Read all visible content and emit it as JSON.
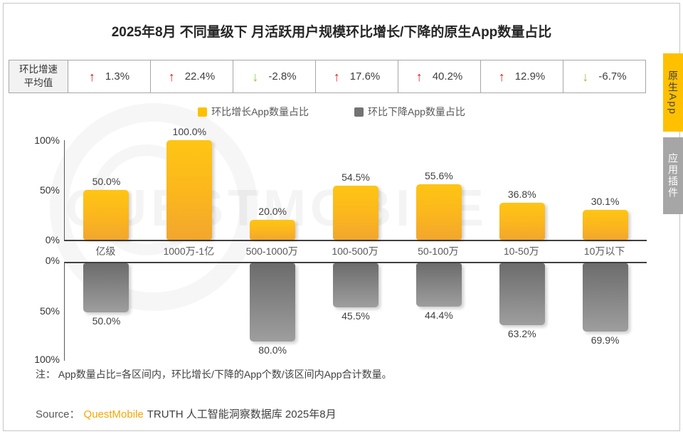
{
  "title": "2025年8月 不同量级下 月活跃用户规模环比增长/下降的原生App数量占比",
  "stats_row": {
    "header_line1": "环比增速",
    "header_line2": "平均值",
    "values": [
      {
        "direction": "up",
        "text": "1.3%"
      },
      {
        "direction": "up",
        "text": "22.4%"
      },
      {
        "direction": "down",
        "text": "-2.8%"
      },
      {
        "direction": "up",
        "text": "17.6%"
      },
      {
        "direction": "up",
        "text": "40.2%"
      },
      {
        "direction": "up",
        "text": "12.9%"
      },
      {
        "direction": "down",
        "text": "-6.7%"
      }
    ]
  },
  "legend": [
    {
      "label": "环比增长App数量占比",
      "color": "#FFC000"
    },
    {
      "label": "环比下降App数量占比",
      "color": "#737373"
    }
  ],
  "chart_data": {
    "type": "bar",
    "title": "2025年8月 不同量级下 月活跃用户规模环比增长/下降的原生App数量占比",
    "categories": [
      "亿级",
      "1000万-1亿",
      "500-1000万",
      "100-500万",
      "50-100万",
      "10-50万",
      "10万以下"
    ],
    "series": [
      {
        "name": "环比增长App数量占比",
        "values": [
          50.0,
          100.0,
          20.0,
          54.5,
          55.6,
          36.8,
          30.1
        ],
        "color": "#FFC000",
        "direction": "up"
      },
      {
        "name": "环比下降App数量占比",
        "values": [
          50.0,
          0.0,
          80.0,
          45.5,
          44.4,
          63.2,
          69.9
        ],
        "color": "#808080",
        "direction": "down"
      }
    ],
    "growth_rate_avg_percent": [
      1.3,
      22.4,
      -2.8,
      17.6,
      40.2,
      12.9,
      -6.7
    ],
    "ylim": [
      0,
      100
    ],
    "yticks": [
      "0%",
      "50%",
      "100%"
    ],
    "value_suffix": "%",
    "layout": "mirrored — growth series plotted upward in top panel, decline series plotted downward in bottom panel",
    "legend_position": "top-center"
  },
  "note": "注：  App数量占比=各区间内，环比增长/下降的App个数/该区间内App合计数量。",
  "source": {
    "prefix": "Source：",
    "brand": "QuestMobile",
    "suffix": "TRUTH 人工智能洞察数据库 2025年8月"
  },
  "sidebar_tabs": [
    {
      "label": "原生App",
      "active": true
    },
    {
      "label": "应用插件",
      "active": false
    }
  ],
  "watermark": "QUESTMOBILE",
  "colors": {
    "up_arrow": "#EE1111",
    "down_arrow": "#8CC63F",
    "bar_up": "#FFC000",
    "bar_down": "#808080",
    "brand_orange": "#F7A600",
    "tab_active_bg": "#FFC000",
    "tab_inactive_bg": "#A6A6A6"
  }
}
